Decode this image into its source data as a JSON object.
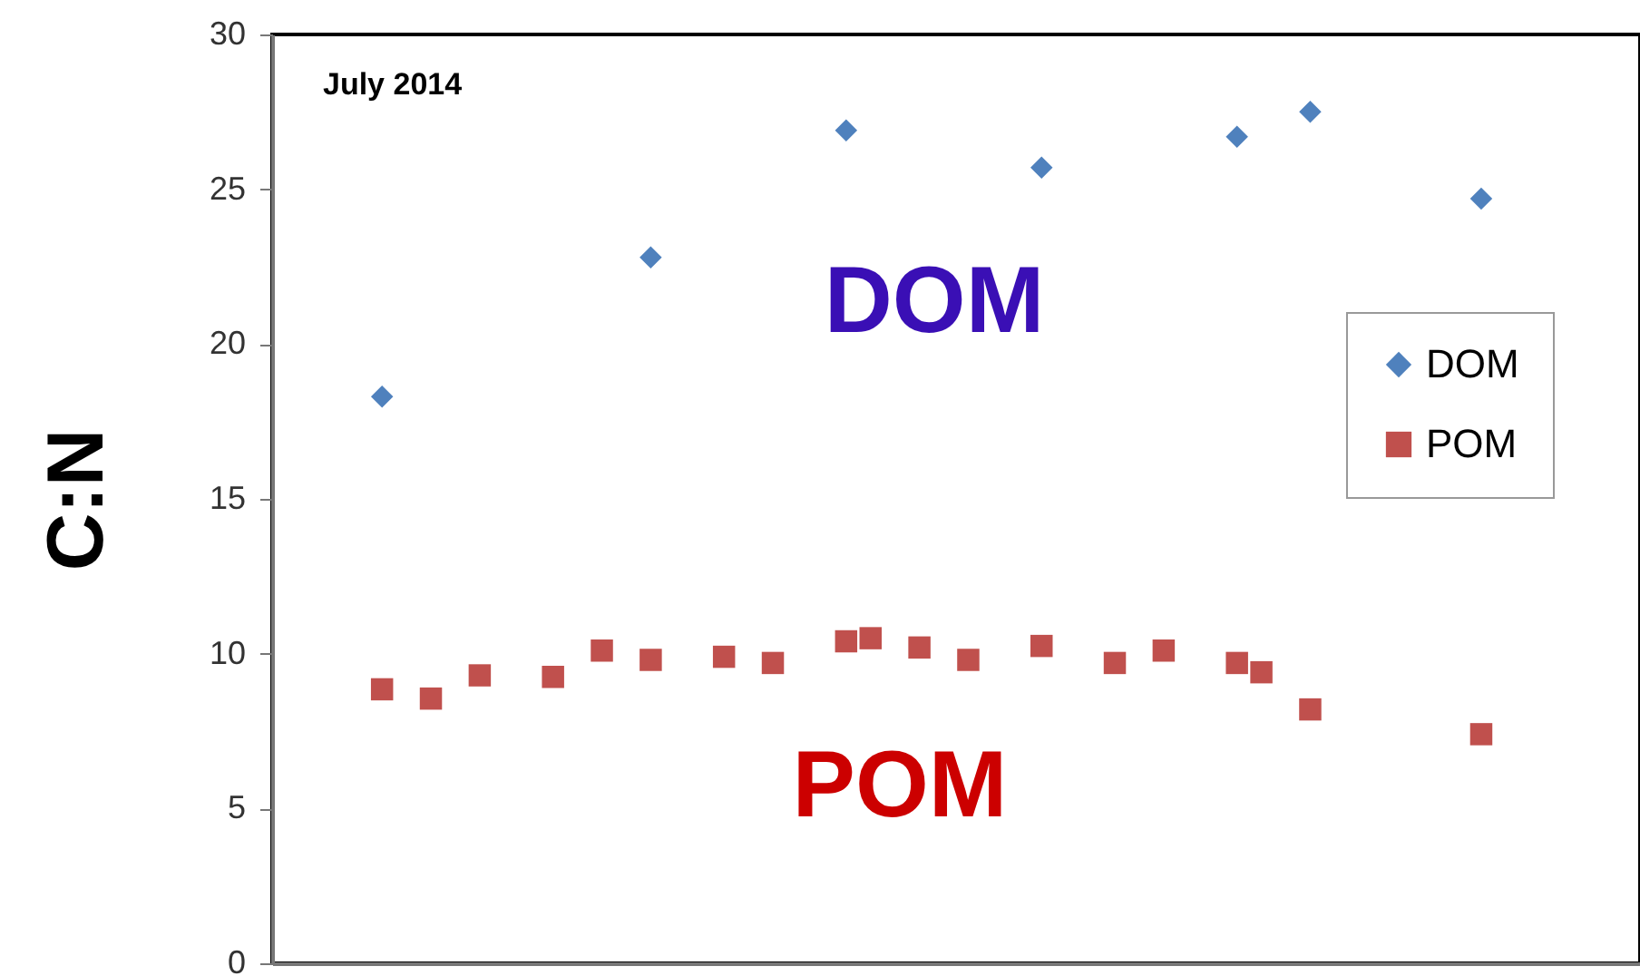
{
  "chart_data": {
    "type": "scatter",
    "ylabel": "C:N",
    "annotations": [
      "July 2014",
      "DOM",
      "POM"
    ],
    "categories": [
      null,
      null,
      null,
      null,
      null,
      null,
      null,
      null,
      null,
      null,
      null,
      null,
      null,
      null,
      null,
      null,
      null,
      null,
      null,
      null,
      null,
      null,
      null,
      null,
      null,
      null,
      null,
      null,
      null,
      null,
      null,
      null,
      null,
      null,
      null,
      null,
      null,
      null,
      null,
      null,
      null,
      null,
      null,
      null,
      null,
      null,
      null,
      null,
      null,
      null,
      null,
      null,
      null,
      null,
      null,
      null
    ],
    "series": [
      {
        "name": "DOM",
        "color": "#4f81bd",
        "marker": "diamond",
        "values": [
          null,
          null,
          null,
          null,
          18.3,
          null,
          null,
          null,
          null,
          null,
          null,
          null,
          null,
          null,
          null,
          22.8,
          null,
          null,
          null,
          null,
          null,
          null,
          null,
          26.9,
          null,
          null,
          null,
          null,
          null,
          null,
          null,
          25.7,
          null,
          null,
          null,
          null,
          null,
          null,
          null,
          26.7,
          null,
          null,
          27.5,
          null,
          null,
          null,
          null,
          null,
          null,
          24.7,
          null,
          null,
          null,
          null,
          null,
          null
        ]
      },
      {
        "name": "POM",
        "color": "#c0504d",
        "marker": "square",
        "values": [
          null,
          null,
          null,
          null,
          8.85,
          null,
          8.55,
          null,
          9.3,
          null,
          null,
          9.25,
          null,
          10.1,
          null,
          9.8,
          null,
          null,
          9.9,
          null,
          9.7,
          null,
          null,
          10.4,
          10.5,
          null,
          10.2,
          null,
          9.8,
          null,
          null,
          10.25,
          null,
          null,
          9.7,
          null,
          10.1,
          null,
          null,
          9.7,
          9.4,
          null,
          8.2,
          null,
          null,
          null,
          null,
          null,
          null,
          7.4,
          null,
          null,
          null,
          null,
          null,
          null
        ]
      }
    ],
    "ylim": [
      0,
      30
    ],
    "yticks": [
      0,
      5,
      10,
      15,
      20,
      25,
      30
    ],
    "grid": false,
    "legend": "right",
    "tick_labels": "y"
  }
}
